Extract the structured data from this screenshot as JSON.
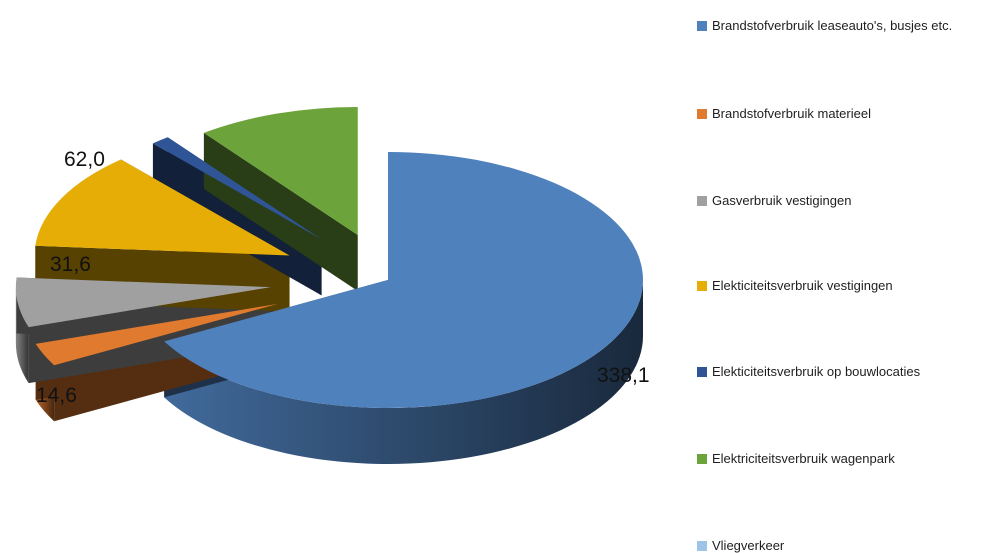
{
  "chart_data": {
    "type": "pie",
    "style": "3d-exploded",
    "title": "",
    "legend_position": "right",
    "series": [
      {
        "name": "Brandstofverbruik leaseauto's, busjes etc.",
        "value": 338.1,
        "label": "338,1",
        "color": "#4F81BD"
      },
      {
        "name": "Brandstofverbruik materieel",
        "value": 14.6,
        "label": "14,6",
        "color": "#E07A2E"
      },
      {
        "name": "Gasverbruik vestigingen",
        "value": 31.6,
        "label": "31,6",
        "color": "#A0A0A0"
      },
      {
        "name": "Elekticiteitsverbruik vestigingen",
        "value": 62.0,
        "label": "62,0",
        "color": "#E6AD06"
      },
      {
        "name": "Elekticiteitsverbruik op bouwlocaties",
        "value": 6.0,
        "label": "",
        "color": "#2F5597"
      },
      {
        "name": "Elektriciteitsverbruik wagenpark",
        "value": 52.0,
        "label": "",
        "color": "#6CA33A"
      },
      {
        "name": "Vliegverkeer",
        "value": 0,
        "label": "",
        "color": "#9DC3E6"
      }
    ]
  }
}
